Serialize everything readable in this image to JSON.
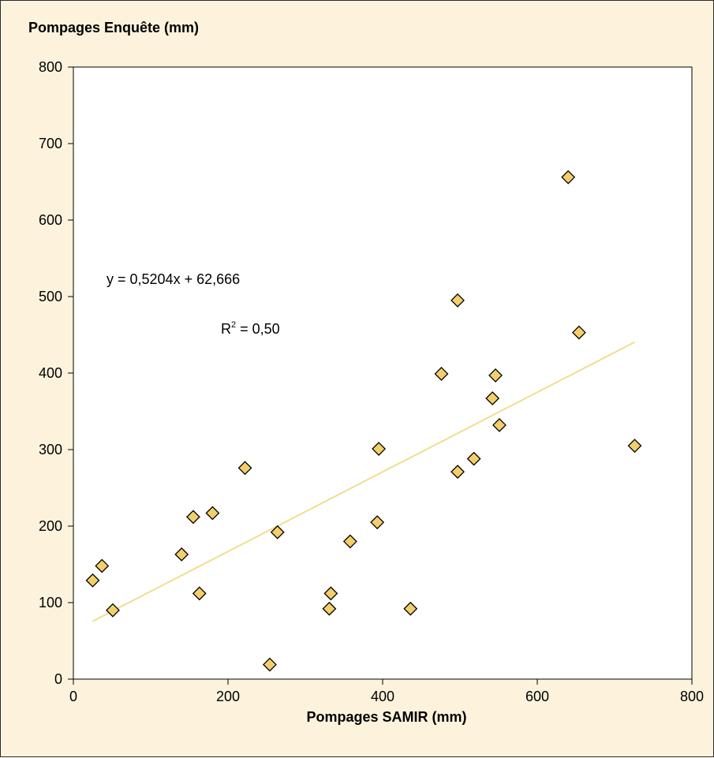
{
  "chart_data": {
    "type": "scatter",
    "ylabel": "Pompages Enquête (mm)",
    "xlabel": "Pompages SAMIR (mm)",
    "xlim": [
      0,
      800
    ],
    "ylim": [
      0,
      800
    ],
    "xticks": [
      0,
      200,
      400,
      600,
      800
    ],
    "yticks": [
      0,
      100,
      200,
      300,
      400,
      500,
      600,
      700,
      800
    ],
    "grid": false,
    "marker": "diamond",
    "marker_color": "#f2cf6b",
    "trendline_color": "#f0de8e",
    "series": [
      {
        "points": [
          [
            25,
            129
          ],
          [
            37,
            148
          ],
          [
            51,
            90
          ],
          [
            140,
            163
          ],
          [
            155,
            212
          ],
          [
            163,
            112
          ],
          [
            180,
            217
          ],
          [
            222,
            276
          ],
          [
            254,
            19
          ],
          [
            264,
            192
          ],
          [
            331,
            92
          ],
          [
            333,
            112
          ],
          [
            358,
            180
          ],
          [
            393,
            205
          ],
          [
            395,
            301
          ],
          [
            436,
            92
          ],
          [
            476,
            399
          ],
          [
            497,
            495
          ],
          [
            497,
            271
          ],
          [
            518,
            288
          ],
          [
            542,
            367
          ],
          [
            546,
            397
          ],
          [
            551,
            332
          ],
          [
            640,
            656
          ],
          [
            654,
            453
          ],
          [
            726,
            305
          ]
        ]
      }
    ],
    "trendline": {
      "slope": 0.5204,
      "intercept": 62.666,
      "x_range": [
        25,
        726
      ]
    },
    "annotations": {
      "equation": "y = 0,5204x + 62,666",
      "r2_prefix": "R",
      "r2_sup": "2",
      "r2_value": " = 0,50"
    }
  }
}
